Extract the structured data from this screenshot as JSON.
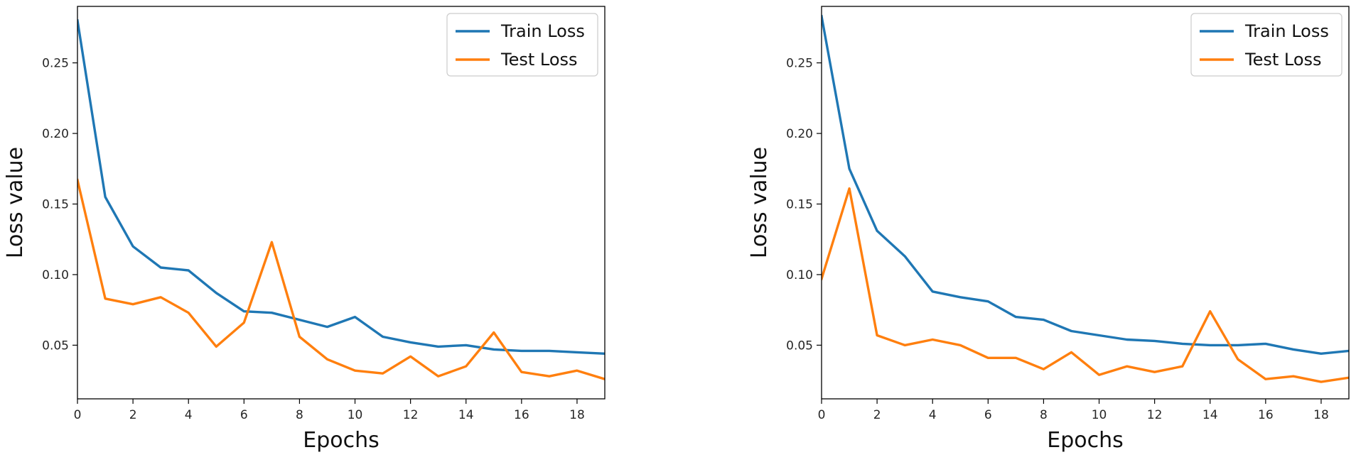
{
  "colors": {
    "train": "#1f77b4",
    "test": "#ff7f0e",
    "axis": "#000000",
    "background": "#ffffff"
  },
  "chart_data": [
    {
      "type": "line",
      "title": "",
      "xlabel": "Epochs",
      "ylabel": "Loss value",
      "xlim": [
        0,
        19
      ],
      "ylim": [
        0.012,
        0.29
      ],
      "xticks": [
        0,
        2,
        4,
        6,
        8,
        10,
        12,
        14,
        16,
        18
      ],
      "xtick_labels": [
        "0",
        "2",
        "4",
        "6",
        "8",
        "10",
        "12",
        "14",
        "16",
        "18"
      ],
      "yticks": [
        0.05,
        0.1,
        0.15,
        0.2,
        0.25
      ],
      "ytick_labels": [
        "0.05",
        "0.10",
        "0.15",
        "0.20",
        "0.25"
      ],
      "legend_position": "top-right",
      "grid": false,
      "x": [
        0,
        1,
        2,
        3,
        4,
        5,
        6,
        7,
        8,
        9,
        10,
        11,
        12,
        13,
        14,
        15,
        16,
        17,
        18,
        19
      ],
      "series": [
        {
          "name": "Train Loss",
          "color_key": "train",
          "values": [
            0.28,
            0.155,
            0.12,
            0.105,
            0.103,
            0.087,
            0.074,
            0.073,
            0.068,
            0.063,
            0.07,
            0.056,
            0.052,
            0.049,
            0.05,
            0.047,
            0.046,
            0.046,
            0.045,
            0.044
          ]
        },
        {
          "name": "Test Loss",
          "color_key": "test",
          "values": [
            0.167,
            0.083,
            0.079,
            0.084,
            0.073,
            0.049,
            0.066,
            0.123,
            0.056,
            0.04,
            0.032,
            0.03,
            0.042,
            0.028,
            0.035,
            0.059,
            0.031,
            0.028,
            0.032,
            0.026
          ]
        }
      ]
    },
    {
      "type": "line",
      "title": "",
      "xlabel": "Epochs",
      "ylabel": "Loss value",
      "xlim": [
        0,
        19
      ],
      "ylim": [
        0.012,
        0.29
      ],
      "xticks": [
        0,
        2,
        4,
        6,
        8,
        10,
        12,
        14,
        16,
        18
      ],
      "xtick_labels": [
        "0",
        "2",
        "4",
        "6",
        "8",
        "10",
        "12",
        "14",
        "16",
        "18"
      ],
      "yticks": [
        0.05,
        0.1,
        0.15,
        0.2,
        0.25
      ],
      "ytick_labels": [
        "0.05",
        "0.10",
        "0.15",
        "0.20",
        "0.25"
      ],
      "legend_position": "top-right",
      "grid": false,
      "x": [
        0,
        1,
        2,
        3,
        4,
        5,
        6,
        7,
        8,
        9,
        10,
        11,
        12,
        13,
        14,
        15,
        16,
        17,
        18,
        19
      ],
      "series": [
        {
          "name": "Train Loss",
          "color_key": "train",
          "values": [
            0.283,
            0.175,
            0.131,
            0.113,
            0.088,
            0.084,
            0.081,
            0.07,
            0.068,
            0.06,
            0.057,
            0.054,
            0.053,
            0.051,
            0.05,
            0.05,
            0.051,
            0.047,
            0.044,
            0.046
          ]
        },
        {
          "name": "Test Loss",
          "color_key": "test",
          "values": [
            0.097,
            0.161,
            0.057,
            0.05,
            0.054,
            0.05,
            0.041,
            0.041,
            0.033,
            0.045,
            0.029,
            0.035,
            0.031,
            0.035,
            0.074,
            0.04,
            0.026,
            0.028,
            0.024,
            0.027
          ]
        }
      ]
    }
  ]
}
